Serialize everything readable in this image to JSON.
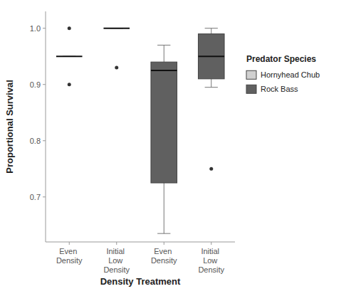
{
  "chart_data": {
    "type": "box",
    "xlabel": "Density Treatment",
    "ylabel": "Proportional Survival",
    "categories": [
      "Even Density",
      "Initial Low Density",
      "Even Density",
      "Initial Low Density"
    ],
    "series": [
      {
        "name": "Hornyhead Chub",
        "color": "#d0d0d0",
        "values": [
          {
            "whislo": 0.95,
            "q1": 0.95,
            "median": 0.95,
            "q3": 0.95,
            "whishi": 0.95,
            "fliers": [
              1.0,
              0.9
            ]
          },
          {
            "whislo": 1.0,
            "q1": 1.0,
            "median": 1.0,
            "q3": 1.0,
            "whishi": 1.0,
            "fliers": [
              0.93
            ]
          },
          null,
          null
        ]
      },
      {
        "name": "Rock Bass",
        "color": "#606060",
        "values": [
          null,
          null,
          {
            "whislo": 0.635,
            "q1": 0.725,
            "median": 0.925,
            "q3": 0.94,
            "whishi": 0.97,
            "fliers": []
          },
          {
            "whislo": 0.895,
            "q1": 0.91,
            "median": 0.95,
            "q3": 0.99,
            "whishi": 1.0,
            "fliers": [
              0.75
            ]
          }
        ]
      }
    ],
    "ylim": [
      0.62,
      1.03
    ],
    "yticks": [
      0.7,
      0.8,
      0.9,
      {
        "value": 1.0,
        "label": "1.0"
      }
    ],
    "grid": false,
    "legend": "right",
    "legend_title": "Predator Species"
  }
}
